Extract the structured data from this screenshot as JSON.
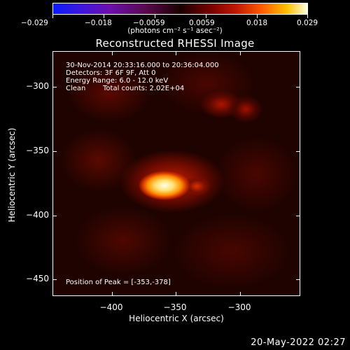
{
  "colorbar": {
    "tick_labels": [
      "−0.029",
      "−0.018",
      "−0.0059",
      "0.0059",
      "0.018",
      "0.029"
    ],
    "units": "(photons cm⁻² s⁻¹ asec⁻²)",
    "colors": [
      "#0a1cff",
      "#6a10b0",
      "#1a0000",
      "#c01800",
      "#ff5a00",
      "#ffffe0"
    ]
  },
  "title": "Reconstructed RHESSI Image",
  "info": {
    "time_range": "30-Nov-2014 20:33:16.000 to 20:36:04.000",
    "detectors": "Detectors: 3F 6F 9F, Att 0",
    "energy_range": "Energy Range: 6.0 - 12.0 keV",
    "algorithm": "Clean",
    "total_counts": "Total counts: 2.02E+04"
  },
  "peak": "Position of Peak = [-353,-378]",
  "axes": {
    "xlabel": "Heliocentric X (arcsec)",
    "ylabel": "Heliocentric Y (arcsec)",
    "x_ticks": [
      "−400",
      "−350",
      "−300"
    ],
    "y_ticks": [
      "−300",
      "−350",
      "−400",
      "−450"
    ]
  },
  "date": "20-May-2022 02:27"
}
